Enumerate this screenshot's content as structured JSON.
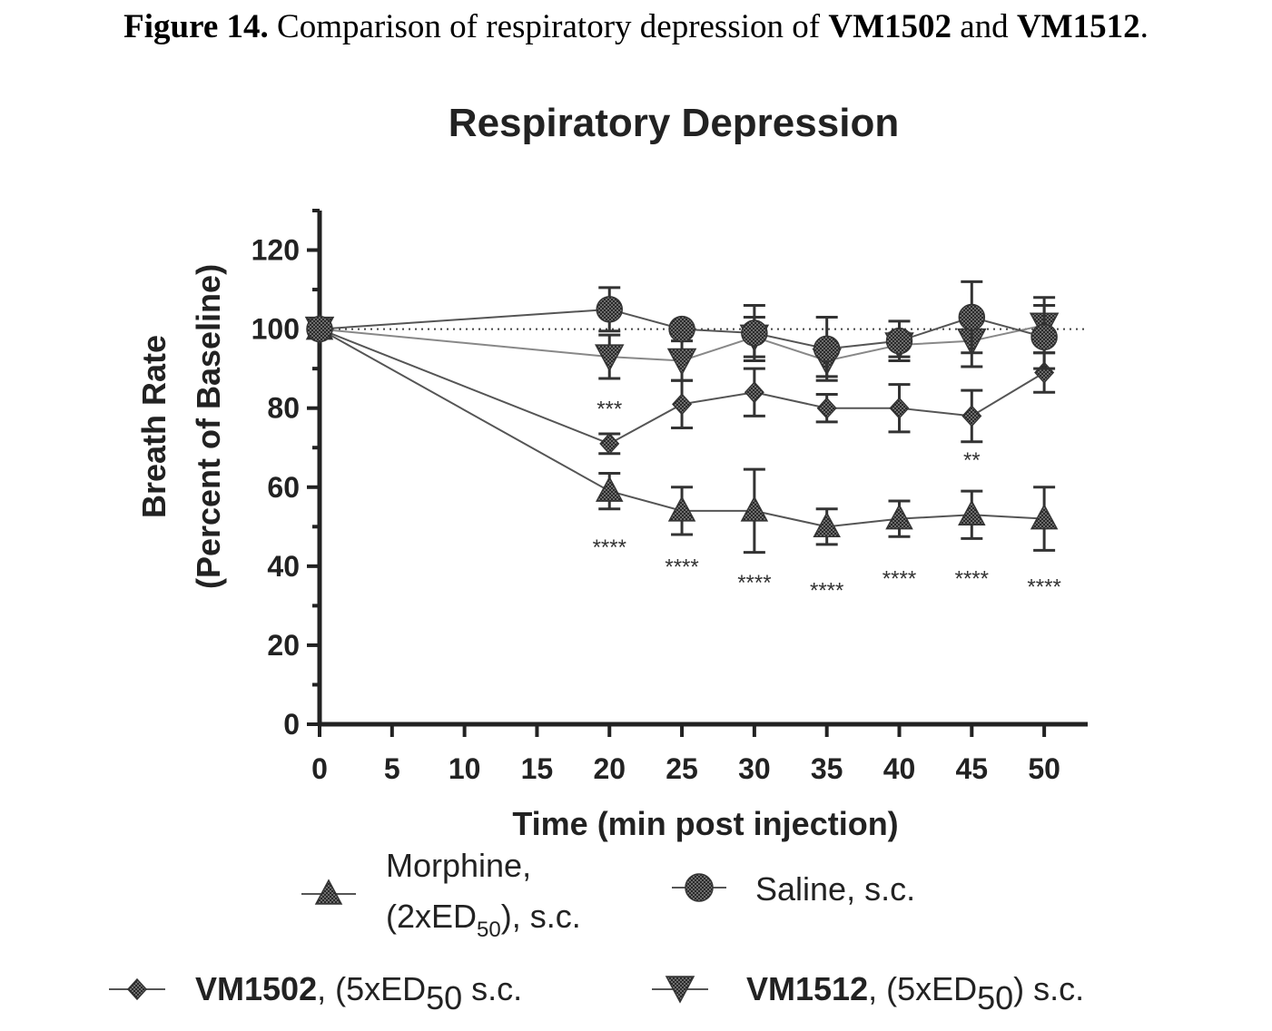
{
  "caption": {
    "label": "Figure 14.",
    "text_before": " Comparison of respiratory depression of ",
    "drug_a": "VM1502",
    "text_and": " and ",
    "drug_b": "VM1512",
    "text_end": "."
  },
  "chart_data": {
    "type": "line",
    "title": "Respiratory Depression",
    "xlabel": "Time (min post injection)",
    "ylabel_line1": "Breath Rate",
    "ylabel_line2": "(Percent of Baseline)",
    "xlim": [
      0,
      53
    ],
    "ylim": [
      0,
      130
    ],
    "xticks": [
      0,
      5,
      10,
      15,
      20,
      25,
      30,
      35,
      40,
      45,
      50
    ],
    "yticks": [
      0,
      20,
      40,
      60,
      80,
      100,
      120
    ],
    "reference_line": 100,
    "series": [
      {
        "key": "morphine",
        "marker": "triangle",
        "x": [
          0,
          20,
          25,
          30,
          35,
          40,
          45,
          50
        ],
        "y": [
          100,
          59,
          54,
          54,
          50,
          52,
          53,
          52
        ],
        "err": [
          0,
          4.5,
          6,
          10.5,
          4.5,
          4.5,
          6,
          8
        ]
      },
      {
        "key": "saline",
        "marker": "circle",
        "x": [
          0,
          20,
          25,
          30,
          35,
          40,
          45,
          50
        ],
        "y": [
          100,
          105,
          100,
          99,
          95,
          97,
          103,
          98
        ],
        "err": [
          0,
          5.5,
          1.5,
          7,
          8,
          5,
          9,
          8
        ]
      },
      {
        "key": "vm1502",
        "marker": "diamond",
        "x": [
          0,
          20,
          25,
          30,
          35,
          40,
          45,
          50
        ],
        "y": [
          100,
          71,
          81,
          84,
          80,
          80,
          78,
          89
        ],
        "err": [
          0,
          2.5,
          6,
          6,
          3.5,
          6,
          6.5,
          5
        ]
      },
      {
        "key": "vm1512",
        "marker": "triangle-down",
        "x": [
          0,
          20,
          25,
          30,
          35,
          40,
          45,
          50
        ],
        "y": [
          100,
          93,
          92,
          98,
          92,
          96,
          97,
          101
        ],
        "err": [
          0,
          5.5,
          5,
          5,
          4,
          3,
          6.5,
          7
        ]
      }
    ],
    "annotations": [
      {
        "text": "***",
        "x": 20,
        "y": 78
      },
      {
        "text": "**",
        "x": 45,
        "y": 65
      },
      {
        "text": "****",
        "x": 20,
        "y": 43
      },
      {
        "text": "****",
        "x": 25,
        "y": 38
      },
      {
        "text": "****",
        "x": 30,
        "y": 34
      },
      {
        "text": "****",
        "x": 35,
        "y": 32
      },
      {
        "text": "****",
        "x": 40,
        "y": 35
      },
      {
        "text": "****",
        "x": 45,
        "y": 35
      },
      {
        "text": "****",
        "x": 50,
        "y": 33
      }
    ],
    "legend": {
      "placement": "bottom",
      "morphine": {
        "line1": "Morphine,",
        "line2_pre": "(2xED",
        "line2_sub": "50",
        "line2_post": "), s.c."
      },
      "saline": {
        "text": "Saline, s.c."
      },
      "vm1502": {
        "name": "VM1502",
        "rest_pre": ",  (5xED",
        "rest_sub": "50",
        "rest_post": "  s.c."
      },
      "vm1512": {
        "name": "VM1512",
        "rest_pre": ", (5xED",
        "rest_sub": "50",
        "rest_post": ") s.c."
      }
    }
  }
}
